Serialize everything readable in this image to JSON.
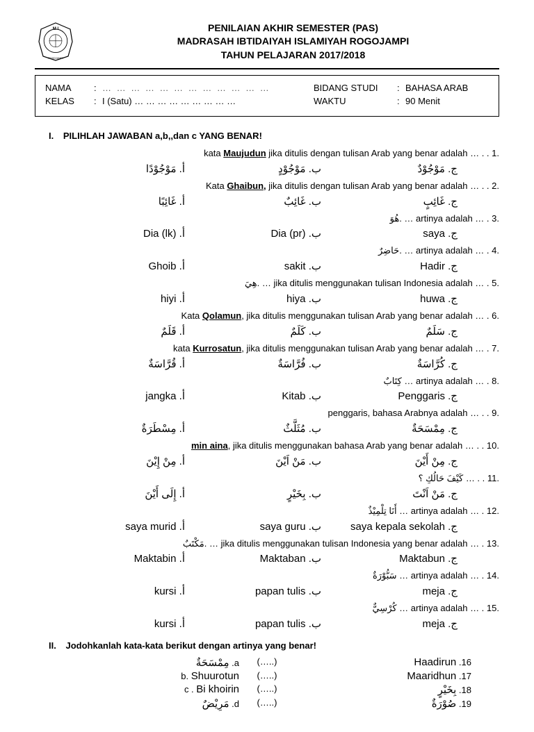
{
  "header": {
    "line1": "PENILAIAN AKHIR SEMESTER (PAS)",
    "line2": "MADRASAH IBTIDAIYAH ISLAMIYAH ROGOJAMPI",
    "line3": "TAHUN PELAJARAN 2017/2018",
    "logo_text_top": "M I",
    "logo_text_bottom": "ROGOJAMPI"
  },
  "info": {
    "nama_label": "NAMA",
    "nama_value": "… … … … … … … … … … … …",
    "kelas_label": "KELAS",
    "kelas_value": "I (Satu) … … … … … … … … …",
    "bidang_label": "BIDANG STUDI",
    "bidang_value": "BAHASA ARAB",
    "waktu_label": "WAKTU",
    "waktu_value": "90 Menit"
  },
  "section1": {
    "roman": "I.",
    "title": "PILIHLAH  JAWABAN a,b,,dan c YANG BENAR!"
  },
  "questions": [
    {
      "num": "1.",
      "pre": "kata ",
      "u": "Maujudun",
      "post": " jika ditulis dengan tulisan Arab yang benar adalah … . .",
      "a": "أ. مَوْجُوْدًا",
      "b": "ب. مَوْجُوْدٍ",
      "c": "ج. مَوْجُوْدٌ"
    },
    {
      "num": "2.",
      "pre": "Kata ",
      "u": "Ghaibun,",
      "post": " jika ditulis dengan tulisan Arab yang benar adalah … . .",
      "a": "أ. غَائِبًا",
      "b": "ب. غَائِبٌ",
      "c": "ج. غَائِبٍ"
    },
    {
      "num": "3.",
      "pre": "",
      "u": "",
      "post": "هُوَ. … artinya adalah … .",
      "a": "أ. Dia (lk)",
      "b": "ب. Dia (pr)",
      "c": "ج. saya"
    },
    {
      "num": "4.",
      "pre": "",
      "u": "",
      "post": "حَاضِرٌ. … artinya adalah … .",
      "a": "أ. Ghoib",
      "b": "ب. sakit",
      "c": "ج. Hadir"
    },
    {
      "num": "5.",
      "pre": "",
      "u": "",
      "post": "هِيَ. … jika ditulis menggunakan tulisan Indonesia adalah … .",
      "a": "أ. hiyi",
      "b": "ب. hiya",
      "c": "ج. huwa"
    },
    {
      "num": "6.",
      "pre": "Kata ",
      "u": "Qolamun",
      "post": ", jika ditulis menggunakan tulisan Arab yang benar adalah … .",
      "a": "أ. قَلَمٌ",
      "b": "ب. كَلَمٌ",
      "c": "ج. سَلَمٌ"
    },
    {
      "num": "7.",
      "pre": "kata ",
      "u": "Kurrosatun",
      "post": ", jika ditulis menggunakan tulisan Arab yang benar adalah … .",
      "a": "أ. قُرَّاسَةٌ",
      "b": "ب. فُرَّاسَةٌ",
      "c": "ج. كُرَّاسَةٌ"
    },
    {
      "num": "8.",
      "pre": "",
      "u": "",
      "post": "كِتَابٌ … artinya adalah … .",
      "a": "أ. jangka",
      "b": "ب. Kitab",
      "c": "ج. Penggaris"
    },
    {
      "num": "9.",
      "pre": "",
      "u": "",
      "post": "penggaris, bahasa Arabnya adalah … . .",
      "a": "أ. مِسْطَرَةٌ",
      "b": "ب. مُثَلَّثٌ",
      "c": "ج. مِمْسَحَةٌ"
    },
    {
      "num": "10.",
      "pre": "",
      "u": "min aina",
      "post": ", jika ditulis menggunakan bahasa Arab yang benar adalah … . .",
      "a": "أ. مِنْ إِيْنَ",
      "b": "ب. مَنْ اَيْنَ",
      "c": "ج. مِنْ أَيْنَ"
    },
    {
      "num": "11.",
      "pre": "",
      "u": "",
      "post": "كَيْفَ حَالُكِ ؟ … . .",
      "a": "أ. إِلَى أَيْنَ",
      "b": "ب. بِخَيْرٍ",
      "c": "ج. مَنْ اَنْتَ"
    },
    {
      "num": "12.",
      "pre": "",
      "u": "",
      "post": "أَنَا تِلْمِيْذٌ … artinya adalah … .",
      "a": "أ. saya murid",
      "b": "ب. saya guru",
      "c": "ج. saya kepala sekolah"
    },
    {
      "num": "13.",
      "pre": "",
      "u": "",
      "post": "مَكْتَبٌ. … jika ditulis menggunakan tulisan Indonesia yang benar adalah … .",
      "a": "أ. Maktabin",
      "b": "ب. Maktaban",
      "c": "ج. Maktabun"
    },
    {
      "num": "14.",
      "pre": "",
      "u": "",
      "post": "سَبُّوْرَةٌ … artinya adalah … .",
      "a": "أ. kursi",
      "b": "ب. papan tulis",
      "c": "ج. meja"
    },
    {
      "num": "15.",
      "pre": "",
      "u": "",
      "post": "كُرْسِيٌّ … artinya adalah … .",
      "a": "أ. kursi",
      "b": "ب. papan tulis",
      "c": "ج. meja"
    }
  ],
  "section2": {
    "roman": "II.",
    "title": "Jodohkanlah kata-kata berikut dengan artinya yang benar!"
  },
  "matches": [
    {
      "num": "16.",
      "left": "Haadirun",
      "mid": "(…..)",
      "rlabel": "a.",
      "right": "مِمْسَحَةٌ"
    },
    {
      "num": "17.",
      "left": "Maaridhun",
      "mid": "(…..)",
      "rlabel": "b.",
      "right": "Shuurotun"
    },
    {
      "num": "18.",
      "left": "بِخَيْرٍ",
      "mid": "(…..)",
      "rlabel": "c .",
      "right": "Bi khoirin"
    },
    {
      "num": "19.",
      "left": "صُوْرَةٌ",
      "mid": "(…..)",
      "rlabel": "d.",
      "right": "مَرِيْضٌ"
    }
  ]
}
